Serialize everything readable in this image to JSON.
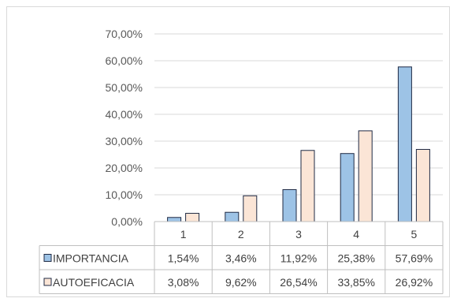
{
  "chart_data": {
    "type": "bar",
    "categories": [
      "1",
      "2",
      "3",
      "4",
      "5"
    ],
    "series": [
      {
        "name": "IMPORTANCIA",
        "values": [
          1.54,
          3.46,
          11.92,
          25.38,
          57.69
        ],
        "labels": [
          "1,54%",
          "3,46%",
          "11,92%",
          "25,38%",
          "57,69%"
        ],
        "color": "#9dc3e6",
        "edge": "#1f2a44"
      },
      {
        "name": "AUTOEFICACIA",
        "values": [
          3.08,
          9.62,
          26.54,
          33.85,
          26.92
        ],
        "labels": [
          "3,08%",
          "9,62%",
          "26,54%",
          "33,85%",
          "26,92%"
        ],
        "color": "#fbe5d6",
        "edge": "#1f2a44"
      }
    ],
    "ylim": [
      0,
      70
    ],
    "yticks": [
      "0,00%",
      "10,00%",
      "20,00%",
      "30,00%",
      "40,00%",
      "50,00%",
      "60,00%",
      "70,00%"
    ],
    "grid": true,
    "legend": "data-table",
    "title": "",
    "xlabel": "",
    "ylabel": ""
  }
}
